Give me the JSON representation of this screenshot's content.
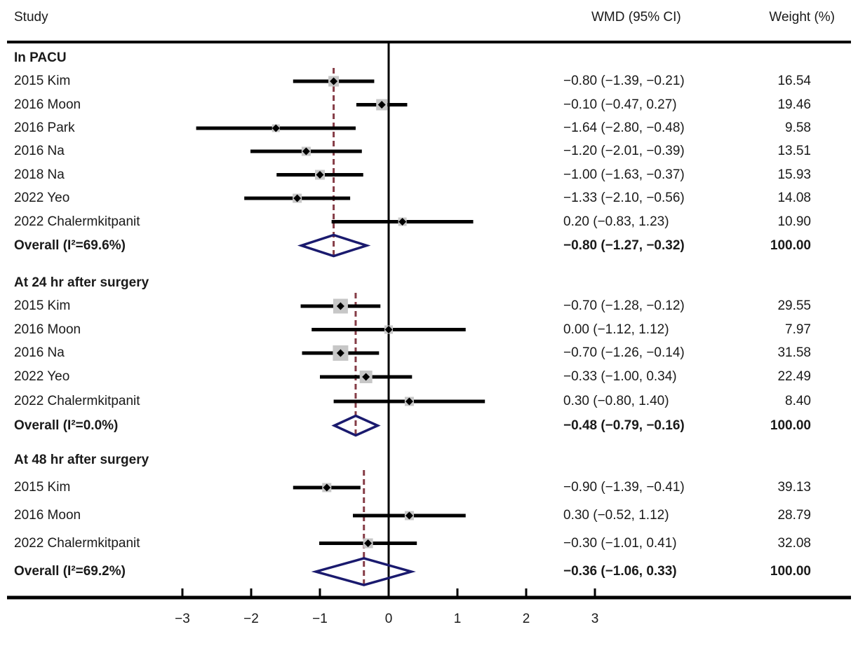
{
  "header": {
    "study_col": "Study",
    "wmd_col": "WMD (95% CI)",
    "weight_col": "Weight (%)"
  },
  "colors": {
    "text": "#1a1a1a",
    "line": "#000000",
    "marker_fill": "#c7c7c7",
    "marker_center": "#000000",
    "pooled_diamond": "#1a1a6e",
    "dashed_line": "#853c46"
  },
  "chart_data": {
    "type": "forest",
    "title": "",
    "xlabel": "",
    "x_ticks": [
      -3,
      -2,
      -1,
      0,
      1,
      2,
      3
    ],
    "x_tick_labels": [
      "−3",
      "−2",
      "−1",
      "0",
      "1",
      "2",
      "3"
    ],
    "xlim": [
      -3.5,
      3.5
    ],
    "null_line_x": 0,
    "subgroups": [
      {
        "label": "In PACU",
        "studies": [
          {
            "label": "2015 Kim",
            "wmd": -0.8,
            "ci": [
              -1.39,
              -0.21
            ],
            "wmd_text": "−0.80 (−1.39, −0.21)",
            "weight": 16.54,
            "weight_text": "16.54",
            "marker_size": 15
          },
          {
            "label": "2016 Moon",
            "wmd": -0.1,
            "ci": [
              -0.47,
              0.27
            ],
            "wmd_text": "−0.10 (−0.47, 0.27)",
            "weight": 19.46,
            "weight_text": "19.46",
            "marker_size": 16
          },
          {
            "label": "2016 Park",
            "wmd": -1.64,
            "ci": [
              -2.8,
              -0.48
            ],
            "wmd_text": "−1.64 (−2.80, −0.48)",
            "weight": 9.58,
            "weight_text": "9.58",
            "marker_size": 11
          },
          {
            "label": "2016 Na",
            "wmd": -1.2,
            "ci": [
              -2.01,
              -0.39
            ],
            "wmd_text": "−1.20 (−2.01, −0.39)",
            "weight": 13.51,
            "weight_text": "13.51",
            "marker_size": 13
          },
          {
            "label": "2018 Na",
            "wmd": -1.0,
            "ci": [
              -1.63,
              -0.37
            ],
            "wmd_text": "−1.00 (−1.63, −0.37)",
            "weight": 15.93,
            "weight_text": "15.93",
            "marker_size": 14
          },
          {
            "label": "2022 Yeo",
            "wmd": -1.33,
            "ci": [
              -2.1,
              -0.56
            ],
            "wmd_text": "−1.33 (−2.10, −0.56)",
            "weight": 14.08,
            "weight_text": "14.08",
            "marker_size": 13
          },
          {
            "label": "2022 Chalermkitpanit",
            "wmd": 0.2,
            "ci": [
              -0.83,
              1.23
            ],
            "wmd_text": "0.20 (−0.83, 1.23)",
            "weight": 10.9,
            "weight_text": "10.90",
            "marker_size": 12
          }
        ],
        "overall": {
          "label": "Overall (I²=69.6%)",
          "i_squared": "69.6%",
          "wmd": -0.8,
          "ci": [
            -1.27,
            -0.32
          ],
          "wmd_text": "−0.80 (−1.27, −0.32)",
          "weight": 100.0,
          "weight_text": "100.00"
        }
      },
      {
        "label": "At 24 hr after surgery",
        "studies": [
          {
            "label": "2015 Kim",
            "wmd": -0.7,
            "ci": [
              -1.28,
              -0.12
            ],
            "wmd_text": "−0.70 (−1.28, −0.12)",
            "weight": 29.55,
            "weight_text": "29.55",
            "marker_size": 21
          },
          {
            "label": "2016 Moon",
            "wmd": 0.0,
            "ci": [
              -1.12,
              1.12
            ],
            "wmd_text": "0.00 (−1.12, 1.12)",
            "weight": 7.97,
            "weight_text": "7.97",
            "marker_size": 12
          },
          {
            "label": "2016 Na",
            "wmd": -0.7,
            "ci": [
              -1.26,
              -0.14
            ],
            "wmd_text": "−0.70 (−1.26, −0.14)",
            "weight": 31.58,
            "weight_text": "31.58",
            "marker_size": 22
          },
          {
            "label": "2022 Yeo",
            "wmd": -0.33,
            "ci": [
              -1.0,
              0.34
            ],
            "wmd_text": "−0.33 (−1.00, 0.34)",
            "weight": 22.49,
            "weight_text": "22.49",
            "marker_size": 18
          },
          {
            "label": "2022 Chalermkitpanit",
            "wmd": 0.3,
            "ci": [
              -0.8,
              1.4
            ],
            "wmd_text": "0.30 (−0.80, 1.40)",
            "weight": 8.4,
            "weight_text": "8.40",
            "marker_size": 13
          }
        ],
        "overall": {
          "label": "Overall (I²=0.0%)",
          "i_squared": "0.0%",
          "wmd": -0.48,
          "ci": [
            -0.79,
            -0.16
          ],
          "wmd_text": "−0.48 (−0.79, −0.16)",
          "weight": 100.0,
          "weight_text": "100.00"
        }
      },
      {
        "label": "At 48 hr after surgery",
        "studies": [
          {
            "label": "2015 Kim",
            "wmd": -0.9,
            "ci": [
              -1.39,
              -0.41
            ],
            "wmd_text": "−0.90 (−1.39, −0.41)",
            "weight": 39.13,
            "weight_text": "39.13",
            "marker_size": 13
          },
          {
            "label": "2016 Moon",
            "wmd": 0.3,
            "ci": [
              -0.52,
              1.12
            ],
            "wmd_text": "0.30 (−0.52, 1.12)",
            "weight": 28.79,
            "weight_text": "28.79",
            "marker_size": 13
          },
          {
            "label": "2022 Chalermkitpanit",
            "wmd": -0.3,
            "ci": [
              -1.01,
              0.41
            ],
            "wmd_text": "−0.30 (−1.01, 0.41)",
            "weight": 32.08,
            "weight_text": "32.08",
            "marker_size": 14
          }
        ],
        "overall": {
          "label": "Overall (I²=69.2%)",
          "i_squared": "69.2%",
          "wmd": -0.36,
          "ci": [
            -1.06,
            0.33
          ],
          "wmd_text": "−0.36 (−1.06, 0.33)",
          "weight": 100.0,
          "weight_text": "100.00"
        }
      }
    ]
  }
}
